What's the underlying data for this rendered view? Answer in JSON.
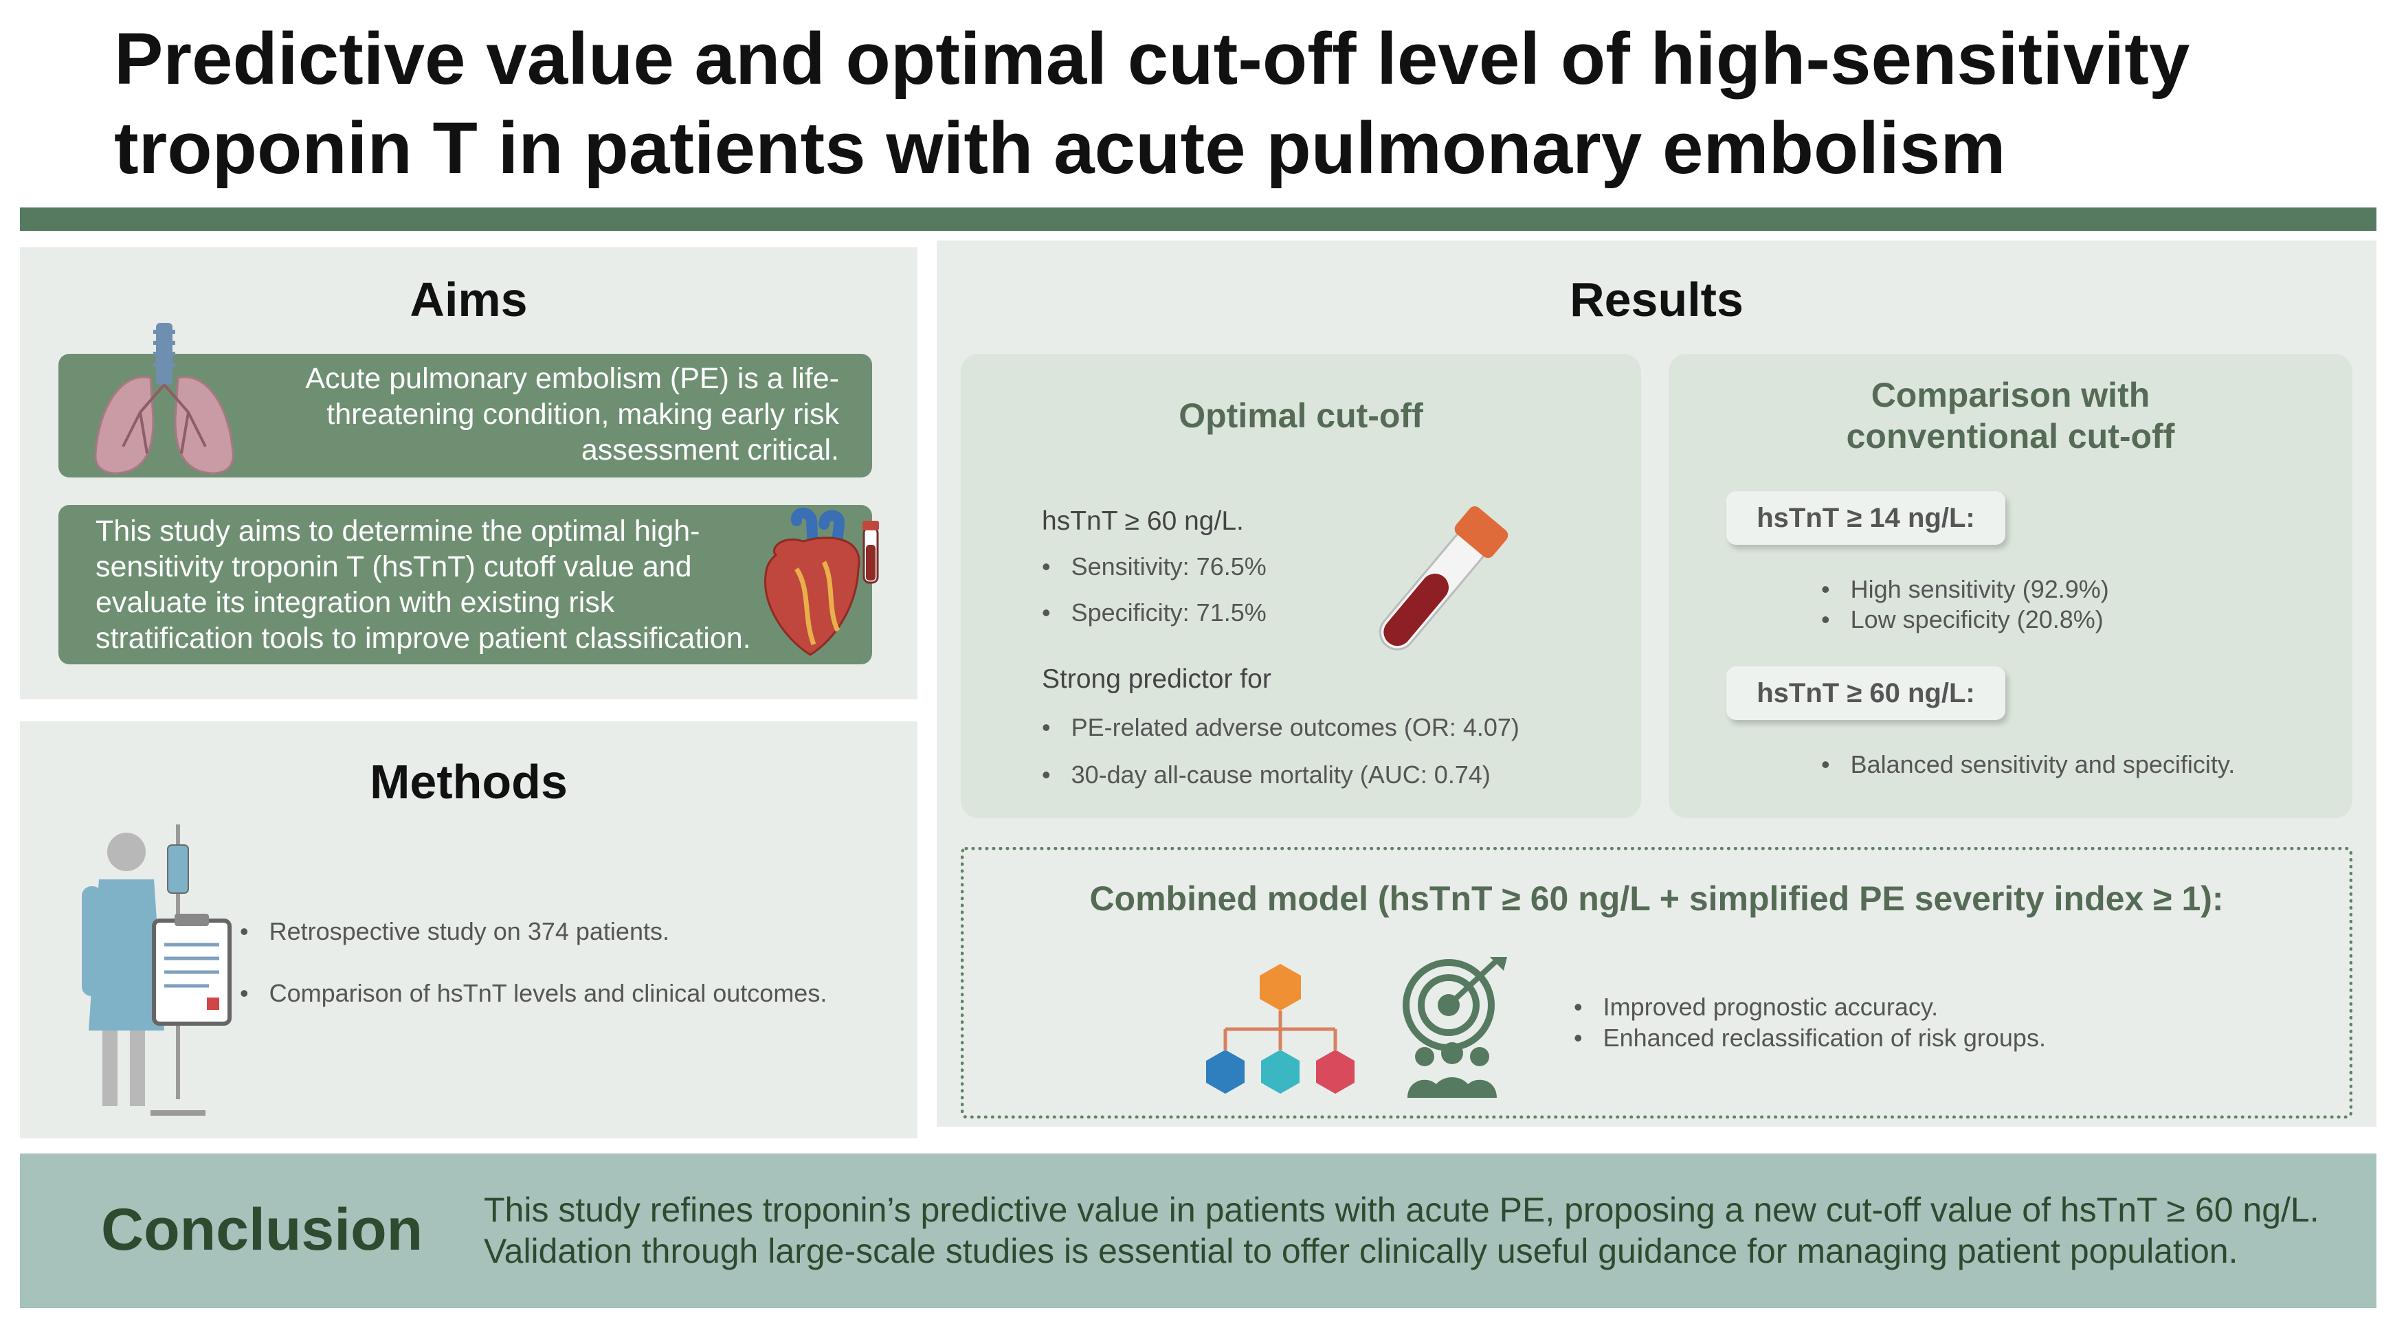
{
  "title": {
    "line1": "Predictive value and optimal cut-off level of high-sensitivity",
    "line2": "troponin T in patients with acute pulmonary embolism"
  },
  "aims": {
    "heading": "Aims",
    "box1": [
      "Acute pulmonary embolism (PE) is a life-",
      "threatening condition, making early risk",
      "assessment critical."
    ],
    "box2": [
      "This study aims to determine the optimal high-",
      "sensitivity troponin T (hsTnT) cutoff value and",
      "evaluate its integration with existing risk",
      "stratification tools to improve patient classification."
    ]
  },
  "methods": {
    "heading": "Methods",
    "bullets": [
      "Retrospective study on 374 patients.",
      "Comparison of hsTnT levels and clinical outcomes."
    ]
  },
  "results": {
    "heading": "Results",
    "optimal": {
      "heading": "Optimal cut-off",
      "threshold": "hsTnT ≥ 60 ng/L.",
      "metrics": [
        "Sensitivity: 76.5%",
        "Specificity: 71.5%"
      ],
      "predictor_label": "Strong predictor for",
      "predictors": [
        "PE-related adverse outcomes (OR: 4.07)",
        "30-day all-cause mortality (AUC: 0.74)"
      ]
    },
    "comparison": {
      "heading_line1": "Comparison with",
      "heading_line2": "conventional cut-off",
      "pill1": "hsTnT ≥ 14 ng/L:",
      "pill1_bullets": [
        "High sensitivity (92.9%)",
        "Low specificity (20.8%)"
      ],
      "pill2": "hsTnT ≥ 60 ng/L:",
      "pill2_bullets": [
        "Balanced sensitivity and specificity."
      ]
    },
    "combined": {
      "heading": "Combined model (hsTnT ≥ 60 ng/L + simplified PE severity index ≥ 1):",
      "bullets": [
        "Improved prognostic accuracy.",
        "Enhanced reclassification of risk groups."
      ]
    }
  },
  "conclusion": {
    "heading": "Conclusion",
    "lines": [
      "This study refines troponin’s predictive value in patients with acute PE, proposing a new cut-off value of hsTnT ≥ 60 ng/L.",
      "Validation through large-scale studies is essential to offer clinically useful guidance for managing patient population."
    ]
  },
  "bullet_char": "•",
  "colors": {
    "accent_green": "#557a5f",
    "box_green": "#6f8f73",
    "panel_bg": "#e8ede9",
    "conclusion_bg": "#a7c1bb"
  }
}
